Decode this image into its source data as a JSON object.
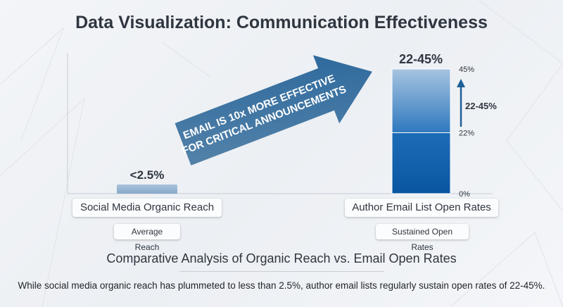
{
  "title": "Data Visualization: Communication Effectiveness",
  "chart_data": {
    "type": "bar",
    "categories": [
      "Social Media Organic Reach",
      "Author Email List Open Rates"
    ],
    "category_sublabels": [
      "Average Reach",
      "Sustained Open Rates"
    ],
    "series": [
      {
        "values": [
          2.5,
          45
        ]
      }
    ],
    "range_lower": [
      0,
      22
    ],
    "value_labels": [
      "<2.5%",
      "22-45%"
    ],
    "ylim": [
      0,
      45
    ],
    "yticks": [
      {
        "value": 0,
        "label": "0%"
      },
      {
        "value": 22,
        "label": "22%"
      },
      {
        "value": 45,
        "label": "45%"
      }
    ],
    "range_annotation": "22-45%",
    "arrow_annotation": [
      "EMAIL IS 10x MORE EFFECTIVE",
      "FOR CRITICAL ANNOUNCEMENTS"
    ],
    "grid": false
  },
  "subtitle": "Comparative Analysis of Organic Reach vs. Email Open Rates",
  "description": "While social media organic reach has plummeted to less than 2.5%, author email lists regularly sustain open rates of 22-45%.",
  "colors": {
    "bar_light": "#9dbad6",
    "bar_dark": "#0b5aa6",
    "arrow": "#2d6b9e",
    "text": "#2f3640"
  }
}
